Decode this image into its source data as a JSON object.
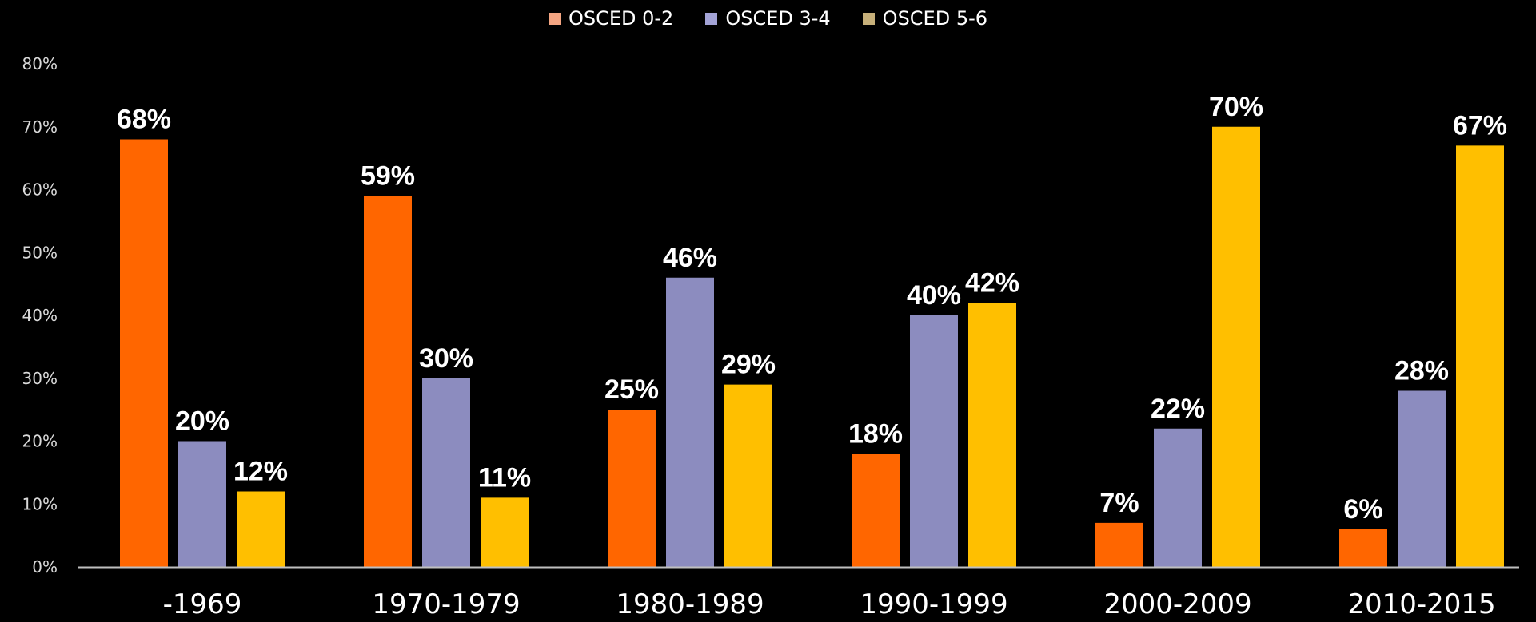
{
  "chart_data": {
    "type": "bar",
    "categories": [
      "-1969",
      "1970-1979",
      "1980-1989",
      "1990-1999",
      "2000-2009",
      "2010-2015"
    ],
    "series": [
      {
        "name": "OSCED 0-2",
        "color": "#ff6600",
        "values": [
          68,
          59,
          25,
          18,
          7,
          6
        ],
        "labels": [
          "68%",
          "59%",
          "25%",
          "18%",
          "7%",
          "6%"
        ]
      },
      {
        "name": "OSCED 3-4",
        "color": "#8c8cbf",
        "values": [
          20,
          30,
          46,
          40,
          22,
          28
        ],
        "labels": [
          "20%",
          "30%",
          "46%",
          "40%",
          "22%",
          "28%"
        ]
      },
      {
        "name": "OSCED 5-6",
        "color": "#ffbf00",
        "values": [
          12,
          11,
          29,
          42,
          70,
          67
        ],
        "labels": [
          "12%",
          "11%",
          "29%",
          "42%",
          "70%",
          "67%"
        ]
      }
    ],
    "yticks": [
      "0%",
      "10%",
      "20%",
      "30%",
      "40%",
      "50%",
      "60%",
      "70%",
      "80%"
    ],
    "ylim": [
      0,
      80
    ],
    "grid": false,
    "legend": "top-center",
    "colors": {
      "background": "#000000",
      "text": "#ffffff",
      "axis": "#bfbfbf",
      "tick_text": "#d9d9d9"
    }
  }
}
